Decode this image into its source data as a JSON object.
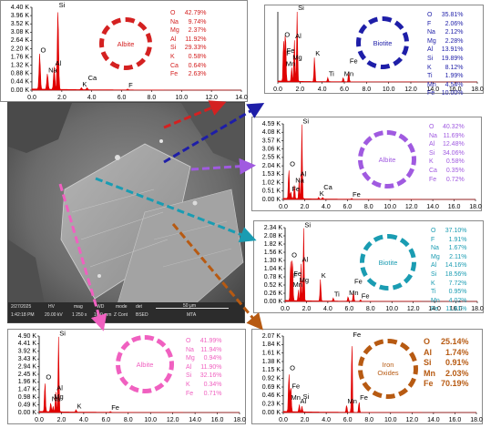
{
  "colors": {
    "albite_red": "#d42121",
    "biotite_navy": "#1e1ea8",
    "albite_violet": "#a05ae0",
    "biotite_teal": "#1a9cb2",
    "albite_pink": "#f060c0",
    "iron_brown": "#b75a12",
    "spectrum": "#e00000"
  },
  "sem": {
    "date": "2/27/2025",
    "time": "1:42:18 PM",
    "hv_label": "HV",
    "hv": "20.00 kV",
    "mag_label": "mag",
    "mag": "1 250 x",
    "wd_label": "WD",
    "wd": "10.0 mm",
    "mode_label": "mode",
    "mode": "Z Cont",
    "det_label": "det",
    "det": "BSED",
    "scale": "50 μm",
    "brand": "MTA"
  },
  "chart_data": [
    {
      "id": "albite-1",
      "type": "line",
      "mineral": "Albite",
      "xlim": [
        0,
        14
      ],
      "xticks": [
        "0.0",
        "2.0",
        "4.0",
        "6.0",
        "8.0",
        "10.0",
        "12.0",
        "14.0"
      ],
      "yticks": [
        "0.00 K",
        "0.44 K",
        "0.88 K",
        "1.32 K",
        "1.76 K",
        "2.20 K",
        "2.64 K",
        "3.08 K",
        "3.52 K",
        "3.96 K",
        "4.40 K"
      ],
      "ylim": [
        0,
        4.4
      ],
      "peaks": [
        {
          "label": "O",
          "x": 0.52,
          "y": 1.9
        },
        {
          "label": "Na",
          "x": 1.04,
          "y": 0.85
        },
        {
          "label": "Al",
          "x": 1.49,
          "y": 1.2
        },
        {
          "label": "Si",
          "x": 1.74,
          "y": 4.3
        },
        {
          "label": "K",
          "x": 3.31,
          "y": 0.1
        },
        {
          "label": "Ca",
          "x": 3.69,
          "y": 0.1
        },
        {
          "label": "F",
          "x": 6.4,
          "y": 0.05
        }
      ],
      "composition": [
        {
          "el": "O",
          "pct": "42.79%"
        },
        {
          "el": "Na",
          "pct": "9.74%"
        },
        {
          "el": "Mg",
          "pct": "2.37%"
        },
        {
          "el": "Al",
          "pct": "11.92%"
        },
        {
          "el": "Si",
          "pct": "29.33%"
        },
        {
          "el": "K",
          "pct": "0.58%"
        },
        {
          "el": "Ca",
          "pct": "0.64%"
        },
        {
          "el": "Fe",
          "pct": "2.63%"
        }
      ]
    },
    {
      "id": "biotite-1",
      "type": "line",
      "mineral": "Biotite",
      "xlim": [
        0,
        18
      ],
      "xticks": [
        "0.0",
        "2.0",
        "4.0",
        "6.0",
        "8.0",
        "10.0",
        "12.0",
        "14.0",
        "16.0",
        "18.0"
      ],
      "yticks": [],
      "ylim": [
        0,
        1
      ],
      "peaks": [
        {
          "label": "O",
          "x": 0.52,
          "y": 0.62
        },
        {
          "label": "F",
          "x": 0.68,
          "y": 0.35
        },
        {
          "label": "Fe",
          "x": 0.71,
          "y": 0.3
        },
        {
          "label": "Mn",
          "x": 0.64,
          "y": 0.2
        },
        {
          "label": "Mg",
          "x": 1.25,
          "y": 0.2
        },
        {
          "label": "Al",
          "x": 1.49,
          "y": 0.6
        },
        {
          "label": "Si",
          "x": 1.74,
          "y": 1.0
        },
        {
          "label": "K",
          "x": 3.31,
          "y": 0.35
        },
        {
          "label": "Ti",
          "x": 4.51,
          "y": 0.06
        },
        {
          "label": "Mn",
          "x": 5.9,
          "y": 0.06
        },
        {
          "label": "Fe",
          "x": 6.4,
          "y": 0.15
        }
      ],
      "composition": [
        {
          "el": "O",
          "pct": "35.81%"
        },
        {
          "el": "F",
          "pct": "2.06%"
        },
        {
          "el": "Na",
          "pct": "2.12%"
        },
        {
          "el": "Mg",
          "pct": "2.28%"
        },
        {
          "el": "Al",
          "pct": "13.91%"
        },
        {
          "el": "Si",
          "pct": "19.89%"
        },
        {
          "el": "K",
          "pct": "8.12%"
        },
        {
          "el": "Ti",
          "pct": "1.99%"
        },
        {
          "el": "Mn",
          "pct": "4.54%"
        },
        {
          "el": "Fe",
          "pct": "10.00%"
        }
      ]
    },
    {
      "id": "albite-2",
      "type": "line",
      "mineral": "Albite",
      "xlim": [
        0,
        18
      ],
      "xticks": [
        "0.0",
        "2.0",
        "4.0",
        "6.0",
        "8.0",
        "10.0",
        "12.0",
        "14.0",
        "16.0",
        "18.0"
      ],
      "yticks": [
        "0.00 K",
        "0.51 K",
        "1.02 K",
        "1.53 K",
        "2.04 K",
        "2.55 K",
        "3.06 K",
        "3.57 K",
        "4.08 K",
        "4.59 K"
      ],
      "ylim": [
        0,
        4.59
      ],
      "peaks": [
        {
          "label": "O",
          "x": 0.52,
          "y": 1.9
        },
        {
          "label": "Na",
          "x": 1.04,
          "y": 0.9
        },
        {
          "label": "Al",
          "x": 1.49,
          "y": 1.3
        },
        {
          "label": "Si",
          "x": 1.74,
          "y": 4.5
        },
        {
          "label": "Fe",
          "x": 0.71,
          "y": 0.4
        },
        {
          "label": "K",
          "x": 3.31,
          "y": 0.1
        },
        {
          "label": "Ca",
          "x": 3.69,
          "y": 0.1
        },
        {
          "label": "Fe",
          "x": 6.4,
          "y": 0.05
        }
      ],
      "composition": [
        {
          "el": "O",
          "pct": "40.32%"
        },
        {
          "el": "Na",
          "pct": "11.69%"
        },
        {
          "el": "Al",
          "pct": "12.48%"
        },
        {
          "el": "Si",
          "pct": "34.06%"
        },
        {
          "el": "K",
          "pct": "0.58%"
        },
        {
          "el": "Ca",
          "pct": "0.35%"
        },
        {
          "el": "Fe",
          "pct": "0.72%"
        }
      ]
    },
    {
      "id": "biotite-2",
      "type": "line",
      "mineral": "Biotite",
      "xlim": [
        0,
        18
      ],
      "xticks": [
        "0.0",
        "2.0",
        "4.0",
        "6.0",
        "8.0",
        "10.0",
        "12.0",
        "14.0",
        "16.0",
        "18.0"
      ],
      "yticks": [
        "0.00 K",
        "0.26 K",
        "0.52 K",
        "0.78 K",
        "1.04 K",
        "1.30 K",
        "1.56 K",
        "1.82 K",
        "2.08 K",
        "2.34 K"
      ],
      "ylim": [
        0,
        2.34
      ],
      "peaks": [
        {
          "label": "O",
          "x": 0.52,
          "y": 1.35
        },
        {
          "label": "F",
          "x": 0.68,
          "y": 0.7
        },
        {
          "label": "Fe",
          "x": 0.71,
          "y": 0.55
        },
        {
          "label": "Mn",
          "x": 0.64,
          "y": 0.4
        },
        {
          "label": "Mg",
          "x": 1.25,
          "y": 0.35
        },
        {
          "label": "Al",
          "x": 1.49,
          "y": 1.2
        },
        {
          "label": "Si",
          "x": 1.74,
          "y": 2.3
        },
        {
          "label": "K",
          "x": 3.31,
          "y": 0.7
        },
        {
          "label": "Ti",
          "x": 4.51,
          "y": 0.1
        },
        {
          "label": "Mn",
          "x": 5.9,
          "y": 0.15
        },
        {
          "label": "Fe",
          "x": 6.4,
          "y": 0.3
        },
        {
          "label": "Fe",
          "x": 7.06,
          "y": 0.05
        }
      ],
      "composition": [
        {
          "el": "O",
          "pct": "37.10%"
        },
        {
          "el": "F",
          "pct": "1.91%"
        },
        {
          "el": "Na",
          "pct": "1.67%"
        },
        {
          "el": "Mg",
          "pct": "2.11%"
        },
        {
          "el": "Al",
          "pct": "14.16%"
        },
        {
          "el": "Si",
          "pct": "18.56%"
        },
        {
          "el": "K",
          "pct": "7.72%"
        },
        {
          "el": "Ti",
          "pct": "0.95%"
        },
        {
          "el": "Mn",
          "pct": "4.02%"
        },
        {
          "el": "Fe",
          "pct": "11.81%"
        }
      ]
    },
    {
      "id": "albite-3",
      "type": "line",
      "mineral": "Albite",
      "xlim": [
        0,
        18
      ],
      "xticks": [
        "0.0",
        "2.0",
        "4.0",
        "6.0",
        "8.0",
        "10.0",
        "12.0",
        "14.0",
        "16.0",
        "18.0"
      ],
      "yticks": [
        "0.00 K",
        "0.49 K",
        "0.98 K",
        "1.47 K",
        "1.96 K",
        "2.45 K",
        "2.94 K",
        "3.43 K",
        "3.92 K",
        "4.41 K",
        "4.90 K"
      ],
      "ylim": [
        0,
        4.9
      ],
      "peaks": [
        {
          "label": "O",
          "x": 0.52,
          "y": 2.0
        },
        {
          "label": "Na",
          "x": 1.04,
          "y": 0.6
        },
        {
          "label": "Mg",
          "x": 1.25,
          "y": 0.35
        },
        {
          "label": "Al",
          "x": 1.49,
          "y": 1.3
        },
        {
          "label": "Si",
          "x": 1.74,
          "y": 4.8
        },
        {
          "label": "K",
          "x": 3.31,
          "y": 0.15
        },
        {
          "label": "Fe",
          "x": 6.4,
          "y": 0.05
        }
      ],
      "composition": [
        {
          "el": "O",
          "pct": "41.99%"
        },
        {
          "el": "Na",
          "pct": "11.94%"
        },
        {
          "el": "Mg",
          "pct": "0.94%"
        },
        {
          "el": "Al",
          "pct": "11.90%"
        },
        {
          "el": "Si",
          "pct": "32.16%"
        },
        {
          "el": "K",
          "pct": "0.34%"
        },
        {
          "el": "Fe",
          "pct": "0.71%"
        }
      ]
    },
    {
      "id": "iron-oxides",
      "type": "line",
      "mineral": "Iron\nOxides",
      "xlim": [
        0,
        18
      ],
      "xticks": [
        "0.0",
        "2.0",
        "4.0",
        "6.0",
        "8.0",
        "10.0",
        "12.0",
        "14.0",
        "16.0",
        "18.0"
      ],
      "yticks": [
        "0.00 K",
        "0.23 K",
        "0.46 K",
        "0.69 K",
        "0.92 K",
        "1.15 K",
        "1.38 K",
        "1.61 K",
        "1.84 K",
        "2.07 K"
      ],
      "ylim": [
        0,
        2.07
      ],
      "peaks": [
        {
          "label": "O",
          "x": 0.52,
          "y": 1.1
        },
        {
          "label": "Fe",
          "x": 0.71,
          "y": 0.6
        },
        {
          "label": "Mn",
          "x": 0.64,
          "y": 0.3
        },
        {
          "label": "Al",
          "x": 1.49,
          "y": 0.2
        },
        {
          "label": "Si",
          "x": 1.74,
          "y": 0.15
        },
        {
          "label": "Mn",
          "x": 5.9,
          "y": 0.2
        },
        {
          "label": "Fe",
          "x": 6.4,
          "y": 2.0
        },
        {
          "label": "Fe",
          "x": 7.06,
          "y": 0.3
        }
      ],
      "composition": [
        {
          "el": "O",
          "pct": "25.14%"
        },
        {
          "el": "Al",
          "pct": "1.74%"
        },
        {
          "el": "Si",
          "pct": "0.91%"
        },
        {
          "el": "Mn",
          "pct": "2.03%"
        },
        {
          "el": "Fe",
          "pct": "70.19%"
        }
      ]
    }
  ]
}
